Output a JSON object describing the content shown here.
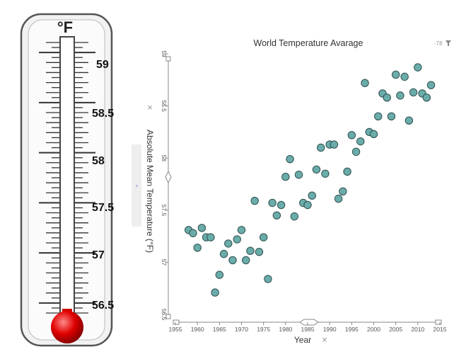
{
  "thermometer": {
    "unit_label": "°F",
    "scale_labels": [
      "59",
      "58.5",
      "58",
      "57.5",
      "57",
      "56.5"
    ],
    "range": [
      56.4,
      59.1
    ],
    "bulb_color": "#e00000"
  },
  "panel": {
    "close_glyph": "×",
    "top_right_text": "-78",
    "filter_icon": "funnel-icon",
    "side_tab_mark": "+"
  },
  "chart_data": {
    "type": "scatter",
    "title": "World Temperature Avarage",
    "xlabel": "Year",
    "ylabel": "Absolute Mean Temperature (°F)",
    "xlim": [
      1955,
      2015
    ],
    "ylim": [
      56.5,
      59
    ],
    "xticks": [
      1955,
      1960,
      1965,
      1970,
      1975,
      1980,
      1985,
      1990,
      1995,
      2000,
      2005,
      2010,
      2015
    ],
    "yticks": [
      "56.5",
      "57",
      "57.5",
      "58",
      "58.5",
      "59"
    ],
    "grid": false,
    "point_color": "#6aacaa",
    "x": [
      1958,
      1959,
      1960,
      1961,
      1962,
      1963,
      1964,
      1965,
      1966,
      1967,
      1968,
      1969,
      1970,
      1971,
      1972,
      1973,
      1974,
      1975,
      1976,
      1977,
      1978,
      1979,
      1980,
      1981,
      1982,
      1983,
      1984,
      1985,
      1986,
      1987,
      1988,
      1989,
      1990,
      1991,
      1992,
      1993,
      1994,
      1995,
      1996,
      1997,
      1998,
      1999,
      2000,
      2001,
      2002,
      2003,
      2004,
      2005,
      2006,
      2007,
      2008,
      2009,
      2010,
      2011,
      2012,
      2013
    ],
    "y": [
      57.31,
      57.28,
      57.14,
      57.33,
      57.24,
      57.24,
      56.71,
      56.88,
      57.08,
      57.18,
      57.02,
      57.22,
      57.31,
      57.02,
      57.11,
      57.59,
      57.1,
      57.24,
      56.84,
      57.57,
      57.45,
      57.55,
      57.82,
      57.99,
      57.44,
      57.84,
      57.57,
      57.55,
      57.64,
      57.89,
      58.1,
      57.85,
      58.13,
      58.13,
      57.61,
      57.68,
      57.87,
      58.22,
      58.06,
      58.16,
      58.72,
      58.25,
      58.23,
      58.4,
      58.62,
      58.58,
      58.4,
      58.8,
      58.6,
      58.78,
      58.36,
      58.63,
      58.87,
      58.62,
      58.58,
      58.7
    ]
  }
}
